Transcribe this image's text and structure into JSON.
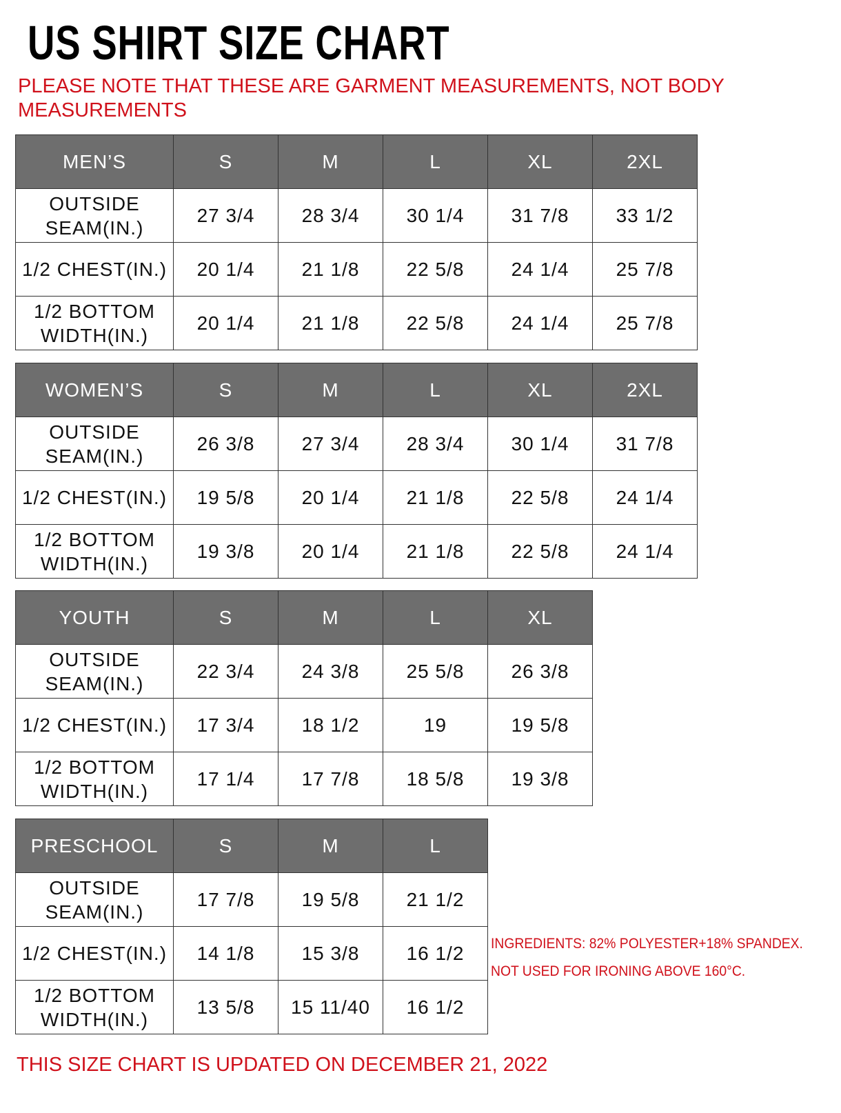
{
  "title": "US SHIRT SIZE CHART",
  "note": "PLEASE NOTE THAT THESE ARE GARMENT MEASUREMENTS, NOT BODY MEASUREMENTS",
  "tables": [
    {
      "header": [
        "MEN’S",
        "S",
        "M",
        "L",
        "XL",
        "2XL"
      ],
      "rows": [
        [
          "OUTSIDE SEAM(IN.)",
          "27 3/4",
          "28 3/4",
          "30 1/4",
          "31 7/8",
          "33 1/2"
        ],
        [
          "1/2 CHEST(IN.)",
          "20 1/4",
          "21 1/8",
          "22 5/8",
          "24 1/4",
          "25 7/8"
        ],
        [
          "1/2 BOTTOM WIDTH(IN.)",
          "20 1/4",
          "21 1/8",
          "22 5/8",
          "24 1/4",
          "25 7/8"
        ]
      ]
    },
    {
      "header": [
        "WOMEN’S",
        "S",
        "M",
        "L",
        "XL",
        "2XL"
      ],
      "rows": [
        [
          "OUTSIDE SEAM(IN.)",
          "26 3/8",
          "27 3/4",
          "28 3/4",
          "30 1/4",
          "31 7/8"
        ],
        [
          "1/2 CHEST(IN.)",
          "19 5/8",
          "20 1/4",
          "21 1/8",
          "22 5/8",
          "24 1/4"
        ],
        [
          "1/2 BOTTOM WIDTH(IN.)",
          "19 3/8",
          "20 1/4",
          "21 1/8",
          "22 5/8",
          "24 1/4"
        ]
      ]
    },
    {
      "header": [
        "YOUTH",
        "S",
        "M",
        "L",
        "XL"
      ],
      "rows": [
        [
          "OUTSIDE SEAM(IN.)",
          "22 3/4",
          "24 3/8",
          "25 5/8",
          "26 3/8"
        ],
        [
          "1/2 CHEST(IN.)",
          "17 3/4",
          "18 1/2",
          "19",
          "19 5/8"
        ],
        [
          "1/2 BOTTOM WIDTH(IN.)",
          "17 1/4",
          "17 7/8",
          "18 5/8",
          "19 3/8"
        ]
      ]
    },
    {
      "header": [
        "PRESCHOOL",
        "S",
        "M",
        "L"
      ],
      "rows": [
        [
          "OUTSIDE SEAM(IN.)",
          "17 7/8",
          "19 5/8",
          "21 1/2"
        ],
        [
          "1/2 CHEST(IN.)",
          "14 1/8",
          "15 3/8",
          "16 1/2"
        ],
        [
          "1/2 BOTTOM WIDTH(IN.)",
          "13 5/8",
          "15 11/40",
          "16 1/2"
        ]
      ]
    }
  ],
  "notes": [
    "INGREDIENTS: 82% POLYESTER+18% SPANDEX.",
    "NOT USED FOR IRONING ABOVE 160°C."
  ],
  "footer": "THIS SIZE CHART IS UPDATED ON DECEMBER 21, 2022"
}
